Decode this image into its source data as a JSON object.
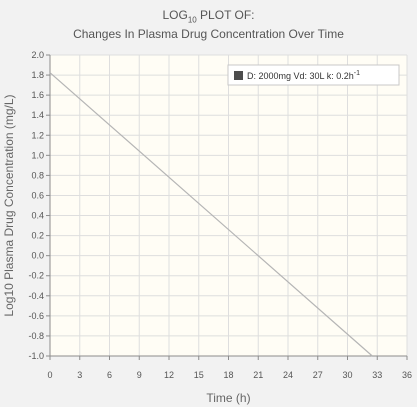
{
  "chart_data": {
    "type": "line",
    "title_main": "LOG",
    "title_sub": "10",
    "title_rest": " PLOT OF:",
    "subtitle": "Changes In Plasma Drug Concentration Over Time",
    "xlabel": "Time  (h)",
    "ylabel": "Log10 Plasma Drug Concentration  (mg/L)",
    "xlim": [
      0,
      36
    ],
    "ylim": [
      -1.0,
      2.0
    ],
    "xticks": [
      0,
      3,
      6,
      9,
      12,
      15,
      18,
      21,
      24,
      27,
      30,
      33,
      36
    ],
    "yticks": [
      -1.0,
      -0.8,
      -0.6,
      -0.4,
      -0.2,
      0.0,
      0.2,
      0.4,
      0.6,
      0.8,
      1.0,
      1.2,
      1.4,
      1.6,
      1.8,
      2.0
    ],
    "grid": true,
    "legend_position": "top-right",
    "series": [
      {
        "name": "D: 2000mg   Vd: 30L   k: 0.2h",
        "name_sup": "-1",
        "color": "#b5b5b5",
        "x": [
          0,
          32.5
        ],
        "y": [
          1.824,
          -1.0
        ]
      }
    ]
  },
  "colors": {
    "plot_bg": "#fffdf5",
    "grid": "#dedede",
    "axis": "#8c8c8c",
    "legend_swatch": "#4d4d4d"
  }
}
